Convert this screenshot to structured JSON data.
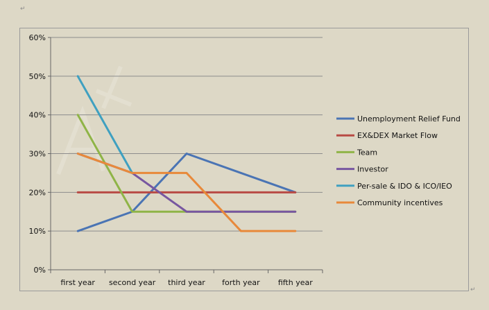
{
  "chart_data": {
    "type": "line",
    "categories": [
      "first year",
      "second year",
      "third year",
      "forth year",
      "fifth year"
    ],
    "y_ticks": [
      "0%",
      "10%",
      "20%",
      "30%",
      "40%",
      "50%",
      "60%"
    ],
    "ylim": [
      0,
      60
    ],
    "grid": true,
    "legend_position": "right",
    "series": [
      {
        "name": "Unemployment Relief Fund",
        "color": "#4a74b4",
        "values": [
          10,
          15,
          30,
          25,
          20
        ]
      },
      {
        "name": "EX&DEX Market Flow",
        "color": "#b84a44",
        "values": [
          20,
          20,
          20,
          20,
          20
        ]
      },
      {
        "name": "Team",
        "color": "#8fb447",
        "values": [
          40,
          15,
          15,
          15,
          15
        ]
      },
      {
        "name": "Investor",
        "color": "#7756a0",
        "values": [
          30,
          25,
          15,
          15,
          15
        ]
      },
      {
        "name": "Per-sale & IDO & ICO/IEO",
        "color": "#3fa0c0",
        "values": [
          50,
          25,
          null,
          null,
          null
        ]
      },
      {
        "name": "Community incentives",
        "color": "#e8893a",
        "values": [
          30,
          25,
          25,
          10,
          10
        ]
      }
    ]
  },
  "page": {
    "para_mark_top": "↵",
    "para_mark_bottom": "↵"
  }
}
